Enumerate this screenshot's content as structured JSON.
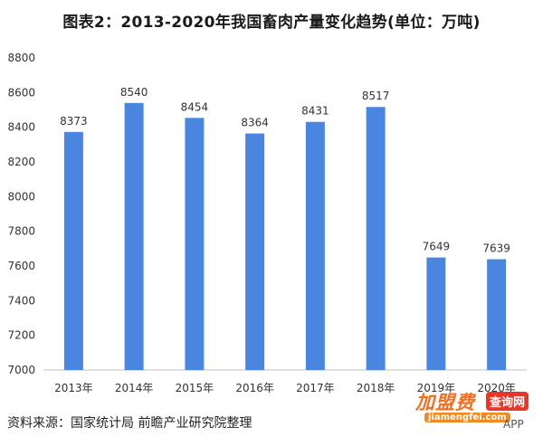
{
  "chart_data": {
    "type": "bar",
    "title": "图表2：2013-2020年我国畜肉产量变化趋势(单位：万吨)",
    "categories": [
      "2013年",
      "2014年",
      "2015年",
      "2016年",
      "2017年",
      "2018年",
      "2019年",
      "2020年"
    ],
    "values": [
      8373,
      8540,
      8454,
      8364,
      8431,
      8517,
      7649,
      7639
    ],
    "ylim": [
      7000,
      8800
    ],
    "yticks": [
      "7000",
      "7200",
      "7400",
      "7600",
      "7800",
      "8000",
      "8200",
      "8400",
      "8600",
      "8800"
    ],
    "xlabel": "",
    "ylabel": "",
    "grid": false,
    "bar_color": "#4a86e0"
  },
  "source": "资料来源：国家统计局 前瞻产业研究院整理",
  "brand": {
    "name": "加盟费",
    "tag": "查询网",
    "url": "jiamengfei.com",
    "app": "APP"
  }
}
